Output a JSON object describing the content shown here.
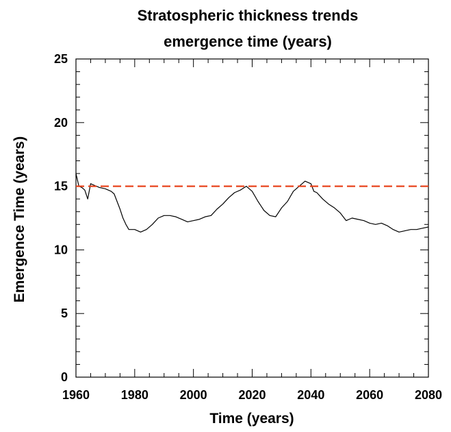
{
  "chart_data": {
    "type": "line",
    "title": [
      "Stratospheric thickness trends",
      "emergence time (years)"
    ],
    "xlabel": "Time (years)",
    "ylabel": "Emergence Time (years)",
    "xlim": [
      1960,
      2080
    ],
    "ylim": [
      0,
      25
    ],
    "xticks": [
      "1960",
      "1980",
      "2000",
      "2020",
      "2040",
      "2060",
      "2080"
    ],
    "yticks": [
      "0",
      "5",
      "10",
      "15",
      "20",
      "25"
    ],
    "grid": false,
    "legend": "none",
    "series": [
      {
        "style": "solid",
        "color": "#000000",
        "x": [
          1960,
          1961,
          1962,
          1963,
          1964,
          1965,
          1966,
          1968,
          1970,
          1972,
          1973,
          1974,
          1975,
          1976,
          1977,
          1978,
          1980,
          1982,
          1984,
          1986,
          1988,
          1990,
          1992,
          1994,
          1996,
          1998,
          2000,
          2002,
          2004,
          2006,
          2008,
          2010,
          2012,
          2014,
          2016,
          2018,
          2019,
          2020,
          2022,
          2024,
          2026,
          2028,
          2030,
          2032,
          2034,
          2036,
          2038,
          2040,
          2041,
          2042,
          2044,
          2046,
          2048,
          2050,
          2052,
          2054,
          2056,
          2058,
          2060,
          2062,
          2064,
          2066,
          2068,
          2070,
          2072,
          2074,
          2076,
          2078,
          2080
        ],
        "y": [
          16.0,
          15.0,
          14.9,
          14.7,
          14.0,
          15.2,
          15.1,
          14.9,
          14.8,
          14.6,
          14.4,
          13.8,
          13.2,
          12.5,
          12.0,
          11.6,
          11.6,
          11.4,
          11.6,
          12.0,
          12.5,
          12.7,
          12.7,
          12.6,
          12.4,
          12.2,
          12.3,
          12.4,
          12.6,
          12.7,
          13.2,
          13.6,
          14.1,
          14.5,
          14.7,
          15.0,
          14.8,
          14.6,
          13.8,
          13.1,
          12.7,
          12.6,
          13.3,
          13.8,
          14.6,
          15.0,
          15.4,
          15.2,
          14.6,
          14.5,
          14.0,
          13.6,
          13.3,
          12.9,
          12.3,
          12.5,
          12.4,
          12.3,
          12.1,
          12.0,
          12.1,
          11.9,
          11.6,
          11.4,
          11.5,
          11.6,
          11.6,
          11.7,
          11.8
        ]
      },
      {
        "style": "dashed",
        "color": "#e8431c",
        "x": [
          1960,
          2080
        ],
        "y": [
          15.0,
          15.0
        ]
      }
    ]
  }
}
